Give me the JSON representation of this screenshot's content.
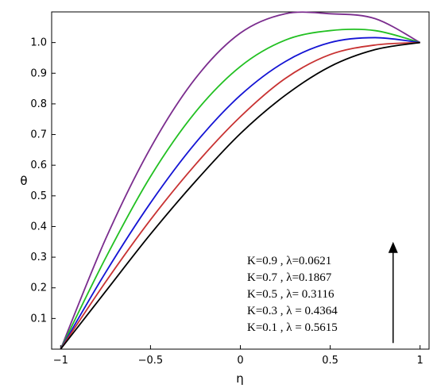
{
  "chart_data": {
    "type": "line",
    "title": "",
    "xlabel": "η",
    "ylabel": "θ",
    "xlim": [
      -1.05,
      1.05
    ],
    "ylim": [
      0,
      1.1
    ],
    "grid": false,
    "legend_placement": "bottom-right",
    "x_ticks": [
      {
        "value": -1,
        "label": "−1"
      },
      {
        "value": -0.5,
        "label": "−0.5"
      },
      {
        "value": 0,
        "label": "0"
      },
      {
        "value": 0.5,
        "label": "0.5"
      },
      {
        "value": 1,
        "label": "1"
      }
    ],
    "y_ticks": [
      {
        "value": 0.1,
        "label": "0.1"
      },
      {
        "value": 0.2,
        "label": "0.2"
      },
      {
        "value": 0.3,
        "label": "0.3"
      },
      {
        "value": 0.4,
        "label": "0.4"
      },
      {
        "value": 0.5,
        "label": "0.5"
      },
      {
        "value": 0.6,
        "label": "0.6"
      },
      {
        "value": 0.7,
        "label": "0.7"
      },
      {
        "value": 0.8,
        "label": "0.8"
      },
      {
        "value": 0.9,
        "label": "0.9"
      },
      {
        "value": 1.0,
        "label": "1.0"
      }
    ],
    "x": [
      -1,
      -0.75,
      -0.5,
      -0.25,
      0,
      0.25,
      0.5,
      0.75,
      1
    ],
    "series": [
      {
        "color": "#7b2d8e",
        "values": [
          0,
          0.359,
          0.656,
          0.883,
          1.031,
          1.094,
          1.094,
          1.078,
          1.0
        ]
      },
      {
        "color": "#22c022",
        "values": [
          0,
          0.297,
          0.563,
          0.773,
          0.922,
          1.008,
          1.039,
          1.039,
          1.0
        ]
      },
      {
        "color": "#1414d4",
        "values": [
          0,
          0.25,
          0.477,
          0.672,
          0.828,
          0.938,
          1.0,
          1.016,
          1.0
        ]
      },
      {
        "color": "#c83232",
        "values": [
          0,
          0.219,
          0.422,
          0.602,
          0.758,
          0.883,
          0.961,
          0.992,
          1.0
        ]
      },
      {
        "color": "#000000",
        "values": [
          0,
          0.188,
          0.375,
          0.547,
          0.703,
          0.828,
          0.922,
          0.977,
          1.0
        ]
      }
    ],
    "annotations": {
      "legend_lines": [
        "K=0.9  , λ=0.0621",
        "K=0.7  , λ=0.1867",
        "K=0.5  , λ= 0.3116",
        "K=0.3  , λ = 0.4364",
        "K=0.1  , λ = 0.5615"
      ],
      "arrow": {
        "x": 0.85,
        "y_from": 0.02,
        "y_to": 0.35,
        "direction": "up"
      }
    }
  }
}
